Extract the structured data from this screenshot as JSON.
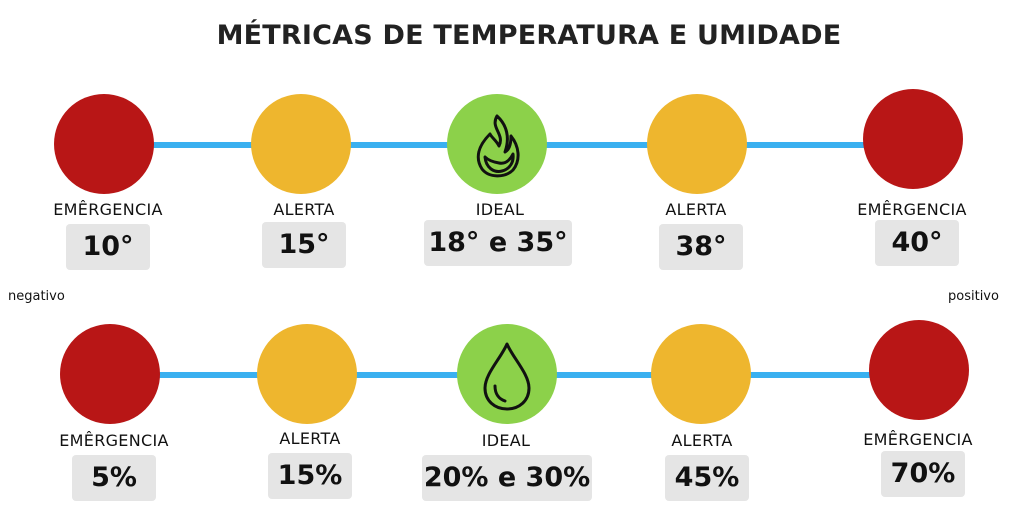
{
  "title": "MÉTRICAS DE TEMPERATURA E UMIDADE",
  "side_labels": {
    "left": "negativo",
    "right": "positivo"
  },
  "colors": {
    "emergency": "#b81616",
    "alert": "#eeb62e",
    "ideal": "#8cd14a",
    "track": "#3ab0f0"
  },
  "temperature": {
    "icon": "fire-icon",
    "stages": [
      {
        "label": "EMÊRGENCIA",
        "value": "10°"
      },
      {
        "label": "ALERTA",
        "value": "15°"
      },
      {
        "label": "IDEAL",
        "value": "18° e 35°"
      },
      {
        "label": "ALERTA",
        "value": "38°"
      },
      {
        "label": "EMÊRGENCIA",
        "value": "40°"
      }
    ]
  },
  "humidity": {
    "icon": "water-drop-icon",
    "stages": [
      {
        "label": "EMÊRGENCIA",
        "value": "5%"
      },
      {
        "label": "ALERTA",
        "value": "15%"
      },
      {
        "label": "IDEAL",
        "value": "20% e 30%"
      },
      {
        "label": "ALERTA",
        "value": "45%"
      },
      {
        "label": "EMÊRGENCIA",
        "value": "70%"
      }
    ]
  }
}
